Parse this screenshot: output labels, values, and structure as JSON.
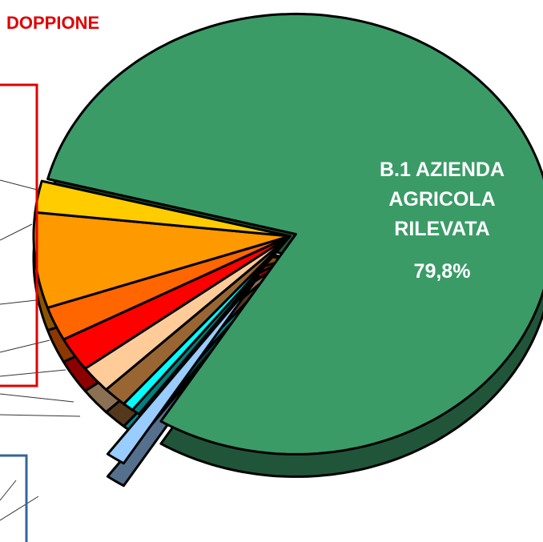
{
  "chart_data": {
    "type": "pie",
    "annotation": "DOPPIONE",
    "categories": [
      "B.1 AZIENDA AGRICOLA RILEVATA",
      null,
      null,
      null,
      null,
      null,
      null,
      null,
      null,
      null
    ],
    "values": [
      79.8,
      1.2,
      0.5,
      0.7,
      1.5,
      2,
      2.5,
      2.5,
      7,
      2.3
    ],
    "value_labels": [
      "79,8%",
      null,
      null,
      null,
      null,
      null,
      null,
      null,
      null,
      null
    ],
    "colors": [
      "#3a9b67",
      "#99ccff",
      "#008080",
      "#00ffff",
      "#996633",
      "#ffcc99",
      "#ff0000",
      "#ff6600",
      "#ff9900",
      "#ffcc00"
    ]
  }
}
